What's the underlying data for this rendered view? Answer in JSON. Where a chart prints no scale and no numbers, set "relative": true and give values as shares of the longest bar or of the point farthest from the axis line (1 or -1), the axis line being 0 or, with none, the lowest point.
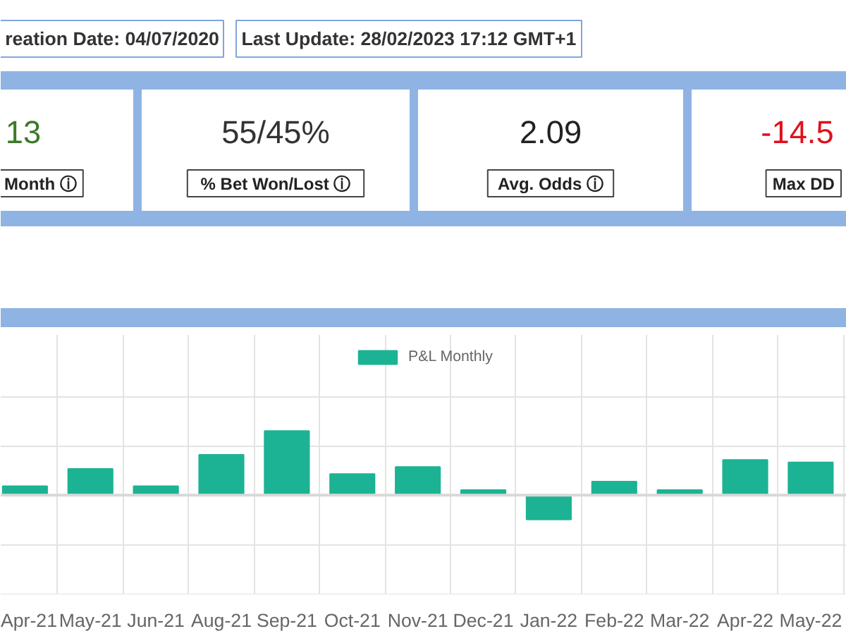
{
  "chart_data": [
    {
      "type": "other",
      "annotations": [
        "reation Date: 04/07/2020",
        "Last Update: 28/02/2023 17:12 GMT+1",
        "13",
        "Month ⓘ",
        "55/45%",
        "% Bet Won/Lost ⓘ",
        "2.09",
        "Avg. Odds ⓘ",
        "-14.5",
        "Max DD"
      ],
      "colors": [
        "#333333",
        "#333333",
        "#3c7a2a",
        "#222222",
        "#333333",
        "#222222",
        "#222222",
        "#222222",
        "#e0101c",
        "#222222"
      ]
    },
    {
      "type": "bar",
      "relative": true,
      "grid": true,
      "legend": "top",
      "categories": [
        "Apr-21",
        "May-21",
        "Jun-21",
        "Aug-21",
        "Sep-21",
        "Oct-21",
        "Nov-21",
        "Dec-21",
        "Jan-22",
        "Feb-22",
        "Mar-22",
        "Apr-22",
        "May-22"
      ],
      "series": [
        {
          "name": "P&L Monthly",
          "color": "#1cb394",
          "values": [
            0.14,
            0.41,
            0.14,
            0.63,
            1,
            0.33,
            0.44,
            0.08,
            -0.38,
            0.21,
            0.08,
            0.55,
            0.51
          ]
        }
      ]
    }
  ]
}
